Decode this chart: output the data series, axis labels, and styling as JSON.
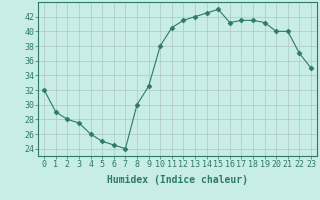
{
  "x": [
    0,
    1,
    2,
    3,
    4,
    5,
    6,
    7,
    8,
    9,
    10,
    11,
    12,
    13,
    14,
    15,
    16,
    17,
    18,
    19,
    20,
    21,
    22,
    23
  ],
  "y": [
    32,
    29,
    28,
    27.5,
    26,
    25,
    24.5,
    24,
    30,
    32.5,
    38,
    40.5,
    41.5,
    42,
    42.5,
    43,
    41.2,
    41.5,
    41.5,
    41.2,
    40,
    40,
    37,
    35
  ],
  "line_color": "#2d7a6a",
  "marker": "D",
  "marker_size": 2.5,
  "bg_color": "#c8ece6",
  "grid_color": "#b0c8c4",
  "xlabel": "Humidex (Indice chaleur)",
  "xlim": [
    -0.5,
    23.5
  ],
  "ylim": [
    23,
    44
  ],
  "yticks": [
    24,
    26,
    28,
    30,
    32,
    34,
    36,
    38,
    40,
    42
  ],
  "xticks": [
    0,
    1,
    2,
    3,
    4,
    5,
    6,
    7,
    8,
    9,
    10,
    11,
    12,
    13,
    14,
    15,
    16,
    17,
    18,
    19,
    20,
    21,
    22,
    23
  ],
  "tick_color": "#2d7a6a",
  "label_fontsize": 7,
  "tick_fontsize": 6
}
